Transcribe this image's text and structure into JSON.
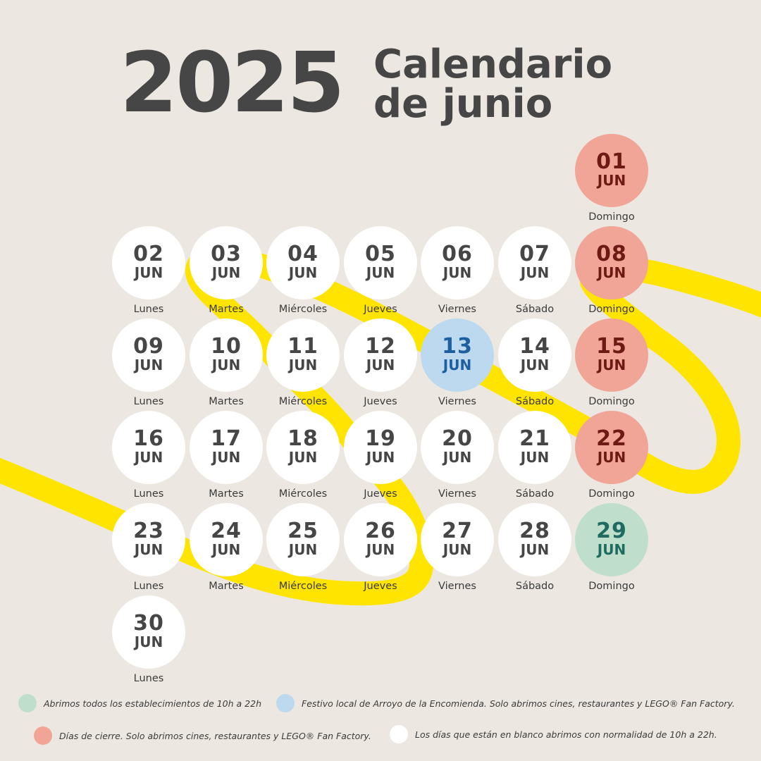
{
  "header": {
    "year": "2025",
    "title_line1": "Calendario",
    "title_line2": "de junio"
  },
  "colors": {
    "background": "#ece8e1",
    "ribbon": "#ffe400",
    "closed": "#f0a597",
    "holiday": "#bcd9ef",
    "open": "#bfdfcc",
    "normal": "#ffffff"
  },
  "calendar": {
    "days": [
      {
        "num": "01",
        "month": "JUN",
        "weekday": "Domingo",
        "status": "closed"
      },
      {
        "num": "02",
        "month": "JUN",
        "weekday": "Lunes",
        "status": "normal"
      },
      {
        "num": "03",
        "month": "JUN",
        "weekday": "Martes",
        "status": "normal"
      },
      {
        "num": "04",
        "month": "JUN",
        "weekday": "Miércoles",
        "status": "normal"
      },
      {
        "num": "05",
        "month": "JUN",
        "weekday": "Jueves",
        "status": "normal"
      },
      {
        "num": "06",
        "month": "JUN",
        "weekday": "Viernes",
        "status": "normal"
      },
      {
        "num": "07",
        "month": "JUN",
        "weekday": "Sábado",
        "status": "normal"
      },
      {
        "num": "08",
        "month": "JUN",
        "weekday": "Domingo",
        "status": "closed"
      },
      {
        "num": "09",
        "month": "JUN",
        "weekday": "Lunes",
        "status": "normal"
      },
      {
        "num": "10",
        "month": "JUN",
        "weekday": "Martes",
        "status": "normal"
      },
      {
        "num": "11",
        "month": "JUN",
        "weekday": "Miércoles",
        "status": "normal"
      },
      {
        "num": "12",
        "month": "JUN",
        "weekday": "Jueves",
        "status": "normal"
      },
      {
        "num": "13",
        "month": "JUN",
        "weekday": "Viernes",
        "status": "holiday"
      },
      {
        "num": "14",
        "month": "JUN",
        "weekday": "Sábado",
        "status": "normal"
      },
      {
        "num": "15",
        "month": "JUN",
        "weekday": "Domingo",
        "status": "closed"
      },
      {
        "num": "16",
        "month": "JUN",
        "weekday": "Lunes",
        "status": "normal"
      },
      {
        "num": "17",
        "month": "JUN",
        "weekday": "Martes",
        "status": "normal"
      },
      {
        "num": "18",
        "month": "JUN",
        "weekday": "Miércoles",
        "status": "normal"
      },
      {
        "num": "19",
        "month": "JUN",
        "weekday": "Jueves",
        "status": "normal"
      },
      {
        "num": "20",
        "month": "JUN",
        "weekday": "Viernes",
        "status": "normal"
      },
      {
        "num": "21",
        "month": "JUN",
        "weekday": "Sábado",
        "status": "normal"
      },
      {
        "num": "22",
        "month": "JUN",
        "weekday": "Domingo",
        "status": "closed"
      },
      {
        "num": "23",
        "month": "JUN",
        "weekday": "Lunes",
        "status": "normal"
      },
      {
        "num": "24",
        "month": "JUN",
        "weekday": "Martes",
        "status": "normal"
      },
      {
        "num": "25",
        "month": "JUN",
        "weekday": "Miércoles",
        "status": "normal"
      },
      {
        "num": "26",
        "month": "JUN",
        "weekday": "Jueves",
        "status": "normal"
      },
      {
        "num": "27",
        "month": "JUN",
        "weekday": "Viernes",
        "status": "normal"
      },
      {
        "num": "28",
        "month": "JUN",
        "weekday": "Sábado",
        "status": "normal"
      },
      {
        "num": "29",
        "month": "JUN",
        "weekday": "Domingo",
        "status": "open"
      },
      {
        "num": "30",
        "month": "JUN",
        "weekday": "Lunes",
        "status": "normal"
      }
    ]
  },
  "legend": {
    "open": "Abrimos todos los establecimientos de 10h a 22h",
    "holiday": "Festivo local de Arroyo de la Encomienda. Solo abrimos cines, restaurantes y LEGO® Fan Factory.",
    "closed": "Días de cierre. Solo abrimos cines, restaurantes y LEGO® Fan Factory.",
    "normal": "Los días que están en blanco abrimos con normalidad de 10h a 22h."
  }
}
